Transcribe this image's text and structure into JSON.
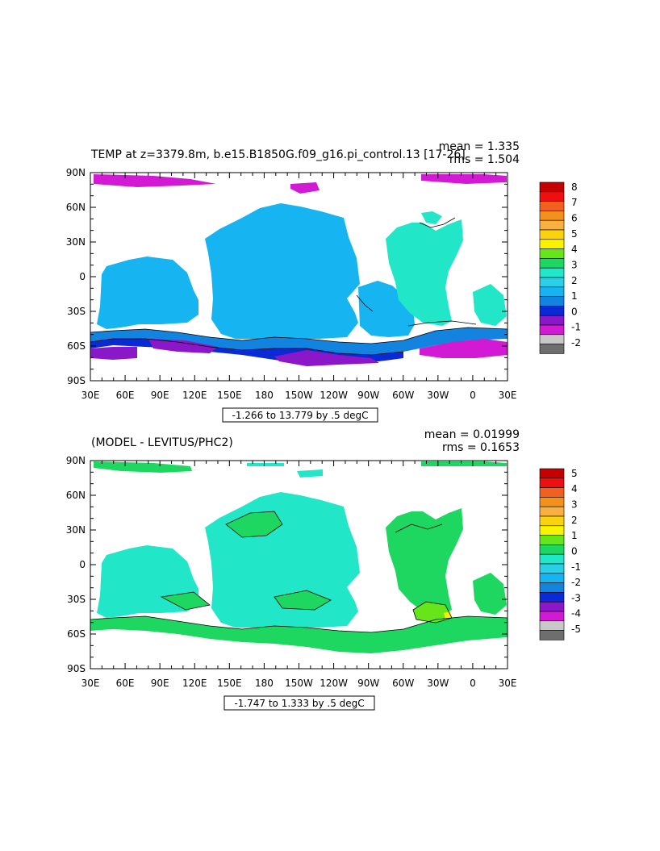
{
  "chart_data": [
    {
      "type": "heatmap",
      "title": "TEMP at z=3379.8m, b.e15.B1850G.f09_g16.pi_control.13 [17-26]",
      "stats": [
        "mean = 1.335",
        "rms = 1.504"
      ],
      "x_ticks": [
        "30E",
        "60E",
        "90E",
        "120E",
        "150E",
        "180",
        "150W",
        "120W",
        "90W",
        "60W",
        "30W",
        "0",
        "30E"
      ],
      "y_ticks": [
        "90N",
        "60N",
        "30N",
        "0",
        "30S",
        "60S",
        "90S"
      ],
      "xlim": [
        30,
        390
      ],
      "ylim": [
        -90,
        90
      ],
      "contour_info": "-1.266 to 13.779 by .5 degC",
      "colorbar": {
        "ticks": [
          "8",
          "7",
          "6",
          "5",
          "4",
          "3",
          "2",
          "1",
          "0",
          "-1",
          "-2"
        ],
        "colors": [
          "#c40000",
          "#ee1010",
          "#f26020",
          "#f4901c",
          "#f8b040",
          "#fbd30c",
          "#f8f400",
          "#66e61a",
          "#1ed760",
          "#22e6c8",
          "#2acfe8",
          "#16b4f0",
          "#1284e0",
          "#0a2ad8",
          "#8a18c8",
          "#d21ad4",
          "#c8c8c8",
          "#6e6e6e"
        ]
      }
    },
    {
      "type": "heatmap",
      "title": "(MODEL - LEVITUS/PHC2)",
      "stats": [
        "mean = 0.01999",
        "rms = 0.1653"
      ],
      "x_ticks": [
        "30E",
        "60E",
        "90E",
        "120E",
        "150E",
        "180",
        "150W",
        "120W",
        "90W",
        "60W",
        "30W",
        "0",
        "30E"
      ],
      "y_ticks": [
        "90N",
        "60N",
        "30N",
        "0",
        "30S",
        "60S",
        "90S"
      ],
      "xlim": [
        30,
        390
      ],
      "ylim": [
        -90,
        90
      ],
      "contour_info": "-1.747 to 1.333 by .5 degC",
      "colorbar": {
        "ticks": [
          "5",
          "4",
          "3",
          "2",
          "1",
          "0",
          "-1",
          "-2",
          "-3",
          "-4",
          "-5"
        ],
        "colors": [
          "#c40000",
          "#ee1010",
          "#f26020",
          "#f4901c",
          "#f8b040",
          "#fbd30c",
          "#f8f400",
          "#66e61a",
          "#1ed760",
          "#22e6c8",
          "#2acfe8",
          "#16b4f0",
          "#1284e0",
          "#0a2ad8",
          "#8a18c8",
          "#d21ad4",
          "#c8c8c8",
          "#6e6e6e"
        ]
      }
    }
  ]
}
